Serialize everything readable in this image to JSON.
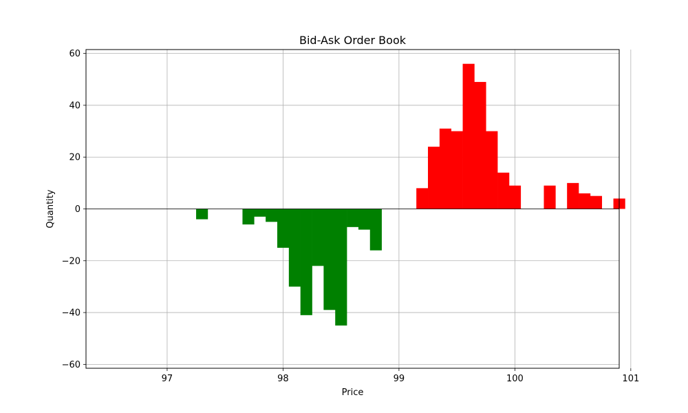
{
  "chart_data": {
    "type": "bar",
    "title": "Bid-Ask Order Book",
    "xlabel": "Price",
    "ylabel": "Quantity",
    "xlim": [
      96.3,
      100.9
    ],
    "ylim": [
      -61.5,
      61.5
    ],
    "x_ticks": [
      97,
      98,
      99,
      100,
      101
    ],
    "y_ticks": [
      -60,
      -40,
      -20,
      0,
      20,
      40,
      60
    ],
    "x_tick_labels": [
      "97",
      "98",
      "99",
      "100",
      "101"
    ],
    "y_tick_labels": [
      "−60",
      "−40",
      "−20",
      "0",
      "20",
      "40",
      "60"
    ],
    "grid": true,
    "bar_width": 0.1,
    "series": [
      {
        "side": "bid",
        "color": "#008000",
        "x": [
          97.3,
          97.7,
          97.8,
          97.9,
          98.0,
          98.1,
          98.2,
          98.3,
          98.4,
          98.5,
          98.6,
          98.7,
          98.8
        ],
        "values": [
          -4,
          -6,
          -3,
          -5,
          -15,
          -30,
          -41,
          -22,
          -39,
          -45,
          -7,
          -8,
          -16
        ]
      },
      {
        "side": "ask",
        "color": "#ff0000",
        "x": [
          99.2,
          99.3,
          99.4,
          99.5,
          99.6,
          99.7,
          99.8,
          99.9,
          100.0,
          100.3,
          100.5,
          100.6,
          100.7,
          100.9
        ],
        "values": [
          8,
          24,
          31,
          30,
          56,
          49,
          30,
          14,
          9,
          9,
          10,
          6,
          5,
          4
        ]
      }
    ]
  }
}
